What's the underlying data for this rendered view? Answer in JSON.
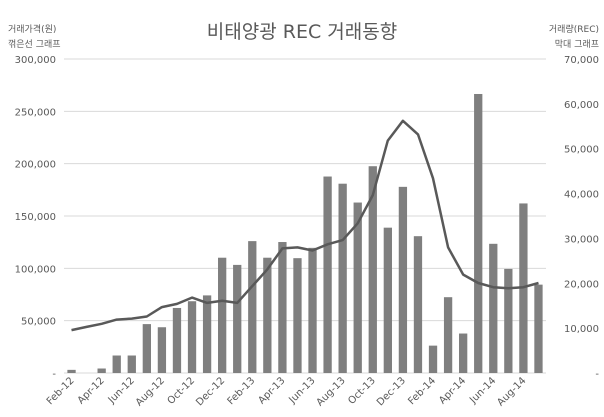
{
  "chart_data": {
    "type": "bar",
    "title": "비태양광 REC 거래동향",
    "left_axis_label": [
      "거래가격(원)",
      "꺾은선 그래프"
    ],
    "right_axis_label": [
      "거래량(REC)",
      "막대 그래프"
    ],
    "left_ticks": [
      "-",
      "50,000",
      "100,000",
      "150,000",
      "200,000",
      "250,000",
      "300,000"
    ],
    "right_ticks": [
      "-",
      "10,000",
      "20,000",
      "30,000",
      "40,000",
      "50,000",
      "60,000",
      "70,000"
    ],
    "x_tick_labels": [
      "Feb-12",
      "Apr-12",
      "Jun-12",
      "Aug-12",
      "Oct-12",
      "Dec-12",
      "Feb-13",
      "Apr-13",
      "Jun-13",
      "Aug-13",
      "Oct-13",
      "Dec-13",
      "Feb-14",
      "Apr-14",
      "Jun-14",
      "Aug-14"
    ],
    "categories": [
      "Feb-12",
      "Mar-12",
      "Apr-12",
      "May-12",
      "Jun-12",
      "Jul-12",
      "Aug-12",
      "Sep-12",
      "Oct-12",
      "Nov-12",
      "Dec-12",
      "Jan-13",
      "Feb-13",
      "Mar-13",
      "Apr-13",
      "May-13",
      "Jun-13",
      "Jul-13",
      "Aug-13",
      "Sep-13",
      "Oct-13",
      "Nov-13",
      "Dec-13",
      "Jan-14",
      "Feb-14",
      "Mar-14",
      "Apr-14",
      "May-14",
      "Jun-14",
      "Jul-14",
      "Aug-14",
      "Sep-14"
    ],
    "left_ylim": [
      0,
      300000
    ],
    "right_ylim": [
      0,
      70000
    ],
    "series": [
      {
        "type": "bar",
        "axis": "right",
        "color": "#7f7f7f",
        "values": [
          700,
          0,
          1000,
          3900,
          3900,
          10900,
          10200,
          14500,
          16000,
          17300,
          25700,
          24100,
          29400,
          25700,
          29200,
          25600,
          27900,
          43800,
          42200,
          38000,
          46100,
          32400,
          41500,
          30500,
          6100,
          16900,
          8800,
          62200,
          28800,
          23200,
          37800,
          19700
        ]
      },
      {
        "type": "line",
        "axis": "left",
        "color": "#595959",
        "values": [
          41000,
          44000,
          47000,
          51000,
          52000,
          54000,
          63000,
          66000,
          72000,
          67000,
          69000,
          67000,
          83000,
          99000,
          119000,
          120000,
          117000,
          123000,
          127000,
          143000,
          170000,
          222000,
          241000,
          228000,
          186000,
          120000,
          94000,
          86000,
          82000,
          81000,
          82000,
          86000
        ]
      }
    ],
    "grid": true,
    "legend": "none"
  }
}
